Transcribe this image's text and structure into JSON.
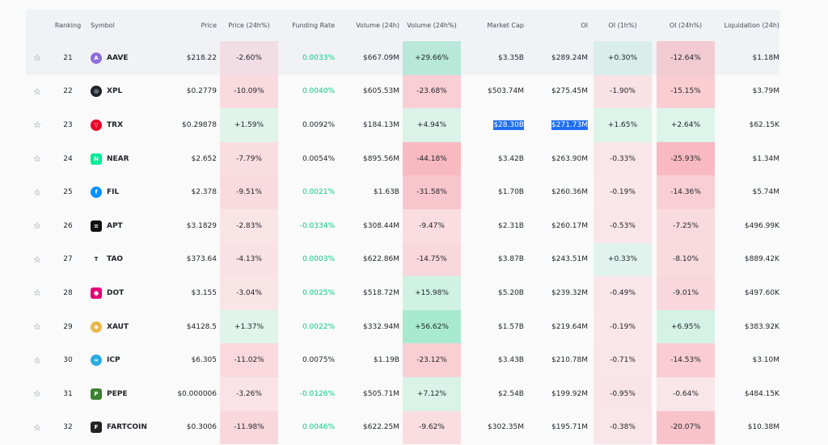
{
  "headers": {
    "ranking": "Ranking",
    "symbol": "Symbol",
    "price": "Price",
    "price24": "Price (24h%)",
    "funding": "Funding Rate",
    "volume": "Volume (24h)",
    "volume24": "Volume (24h%)",
    "mcap": "Market Cap",
    "oi": "OI",
    "oi1h": "OI (1h%)",
    "oi24": "OI (24h%)",
    "liq": "Liquidation (24h)"
  },
  "colors": {
    "up": "#0ecb81",
    "icon_colors": [
      "#8c6fd9",
      "#1e2329",
      "#eb0029",
      "#00ec97",
      "#0090ff",
      "#111111",
      "#ffffff",
      "#e6007a",
      "#e8b84a",
      "#29abe2",
      "#3d8130",
      "#222222"
    ]
  },
  "rows": [
    {
      "rank": "21",
      "symbol": "AAVE",
      "icon": "aave-icon",
      "price": "$218.22",
      "p24": "-2.60%",
      "funding": "0.0033%",
      "fgreen": true,
      "vol": "$667.09M",
      "v24": "+29.66%",
      "mcap": "$3.35B",
      "oi": "$289.24M",
      "oi1": "+0.30%",
      "oi24": "-12.64%",
      "liq": "$1.18M"
    },
    {
      "rank": "22",
      "symbol": "XPL",
      "icon": "xpl-icon",
      "price": "$0.2779",
      "p24": "-10.09%",
      "funding": "0.0040%",
      "fgreen": true,
      "vol": "$605.53M",
      "v24": "-23.68%",
      "mcap": "$503.74M",
      "oi": "$275.45M",
      "oi1": "-1.90%",
      "oi24": "-15.15%",
      "liq": "$3.79M"
    },
    {
      "rank": "23",
      "symbol": "TRX",
      "icon": "trx-icon",
      "price": "$0.29878",
      "p24": "+1.59%",
      "funding": "0.0092%",
      "fgreen": false,
      "vol": "$184.13M",
      "v24": "+4.94%",
      "mcap": "$28.30B",
      "oi": "$271.73M",
      "oi1": "+1.65%",
      "oi24": "+2.64%",
      "liq": "$62.15K",
      "selected": true
    },
    {
      "rank": "24",
      "symbol": "NEAR",
      "icon": "near-icon",
      "price": "$2.652",
      "p24": "-7.79%",
      "funding": "0.0054%",
      "fgreen": false,
      "vol": "$895.56M",
      "v24": "-44.18%",
      "mcap": "$3.42B",
      "oi": "$263.90M",
      "oi1": "-0.33%",
      "oi24": "-25.93%",
      "liq": "$1.34M"
    },
    {
      "rank": "25",
      "symbol": "FIL",
      "icon": "fil-icon",
      "price": "$2.378",
      "p24": "-9.51%",
      "funding": "0.0021%",
      "fgreen": true,
      "vol": "$1.63B",
      "v24": "-31.58%",
      "mcap": "$1.70B",
      "oi": "$260.36M",
      "oi1": "-0.19%",
      "oi24": "-14.36%",
      "liq": "$5.74M"
    },
    {
      "rank": "26",
      "symbol": "APT",
      "icon": "apt-icon",
      "price": "$3.1829",
      "p24": "-2.83%",
      "funding": "-0.0334%",
      "fgreen": true,
      "vol": "$308.44M",
      "v24": "-9.47%",
      "mcap": "$2.31B",
      "oi": "$260.17M",
      "oi1": "-0.53%",
      "oi24": "-7.25%",
      "liq": "$496.99K"
    },
    {
      "rank": "27",
      "symbol": "TAO",
      "icon": "tao-icon",
      "price": "$373.64",
      "p24": "-4.13%",
      "funding": "0.0003%",
      "fgreen": true,
      "vol": "$622.86M",
      "v24": "-14.75%",
      "mcap": "$3.87B",
      "oi": "$243.51M",
      "oi1": "+0.33%",
      "oi24": "-8.10%",
      "liq": "$889.42K"
    },
    {
      "rank": "28",
      "symbol": "DOT",
      "icon": "dot-icon",
      "price": "$3.155",
      "p24": "-3.04%",
      "funding": "0.0025%",
      "fgreen": true,
      "vol": "$518.72M",
      "v24": "+15.98%",
      "mcap": "$5.20B",
      "oi": "$239.32M",
      "oi1": "-0.49%",
      "oi24": "-9.01%",
      "liq": "$497.60K"
    },
    {
      "rank": "29",
      "symbol": "XAUT",
      "icon": "xaut-icon",
      "price": "$4128.5",
      "p24": "+1.37%",
      "funding": "0.0022%",
      "fgreen": true,
      "vol": "$332.94M",
      "v24": "+56.62%",
      "mcap": "$1.57B",
      "oi": "$219.64M",
      "oi1": "-0.19%",
      "oi24": "+6.95%",
      "liq": "$383.92K"
    },
    {
      "rank": "30",
      "symbol": "ICP",
      "icon": "icp-icon",
      "price": "$6.305",
      "p24": "-11.02%",
      "funding": "0.0075%",
      "fgreen": false,
      "vol": "$1.19B",
      "v24": "-23.12%",
      "mcap": "$3.43B",
      "oi": "$210.78M",
      "oi1": "-0.71%",
      "oi24": "-14.53%",
      "liq": "$3.10M"
    },
    {
      "rank": "31",
      "symbol": "PEPE",
      "icon": "pepe-icon",
      "price": "$0.000006",
      "p24": "-3.26%",
      "funding": "-0.0126%",
      "fgreen": true,
      "vol": "$505.71M",
      "v24": "+7.12%",
      "mcap": "$2.54B",
      "oi": "$199.92M",
      "oi1": "-0.95%",
      "oi24": "-0.64%",
      "liq": "$484.15K"
    },
    {
      "rank": "32",
      "symbol": "FARTCOIN",
      "icon": "fartcoin-icon",
      "price": "$0.3006",
      "p24": "-11.98%",
      "funding": "0.0046%",
      "fgreen": true,
      "vol": "$622.25M",
      "v24": "-9.62%",
      "mcap": "$302.35M",
      "oi": "$195.71M",
      "oi1": "-0.38%",
      "oi24": "-20.07%",
      "liq": "$10.38M"
    }
  ]
}
